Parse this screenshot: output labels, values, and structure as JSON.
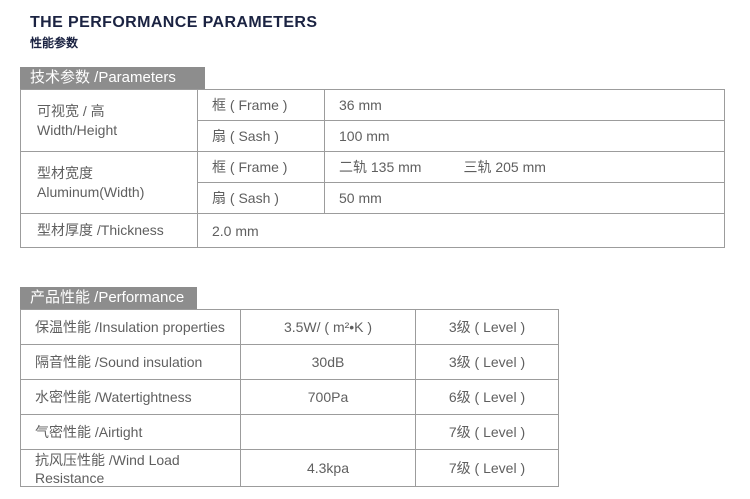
{
  "page": {
    "title": "THE PERFORMANCE PARAMETERS",
    "subtitle": "性能参数"
  },
  "colors": {
    "title_navy": "#1b2342",
    "header_bar_gray": "#8d8d8d",
    "table_border_gray": "#9c9c9c",
    "cell_text_gray": "#5f5f5f",
    "background": "#ffffff"
  },
  "parameters_table": {
    "header": "技术参数 /Parameters",
    "groups": [
      {
        "label_zh": "可视宽 / 高",
        "label_en": "Width/Height",
        "rows": [
          {
            "key": "框 ( Frame )",
            "value": "36 mm"
          },
          {
            "key": "扇 ( Sash )",
            "value": "100 mm"
          }
        ]
      },
      {
        "label_zh": "型材宽度",
        "label_en": "Aluminum(Width)",
        "rows": [
          {
            "key": "框 ( Frame )",
            "value": "二轨 135 mm",
            "value2": "三轨 205 mm"
          },
          {
            "key": "扇 ( Sash )",
            "value": "50 mm"
          }
        ]
      }
    ],
    "thickness_row": {
      "label": "型材厚度 /Thickness",
      "value": "2.0 mm"
    }
  },
  "performance_table": {
    "header": "产品性能 /Performance",
    "rows": [
      {
        "label": "保温性能 /Insulation properties",
        "value": "3.5W/ ( m²•K )",
        "level": "3级 ( Level )"
      },
      {
        "label": "隔音性能 /Sound insulation",
        "value": "30dB",
        "level": "3级 ( Level )"
      },
      {
        "label": "水密性能 /Watertightness",
        "value": "700Pa",
        "level": "6级 ( Level )"
      },
      {
        "label": "气密性能 /Airtight",
        "value": "",
        "level": "7级 ( Level )"
      },
      {
        "label": "抗风压性能 /Wind Load Resistance",
        "value": "4.3kpa",
        "level": "7级 ( Level )"
      }
    ]
  }
}
